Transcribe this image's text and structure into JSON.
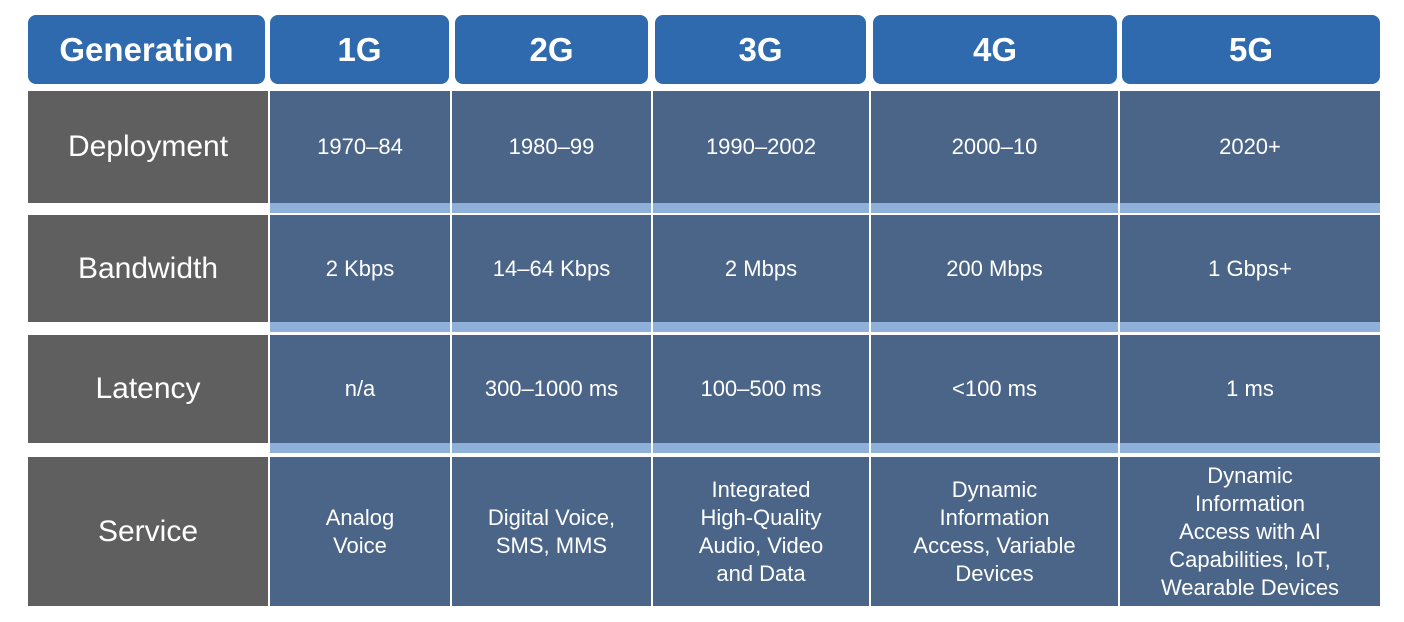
{
  "table": {
    "header": [
      "Generation",
      "1G",
      "2G",
      "3G",
      "4G",
      "5G"
    ],
    "rows": [
      {
        "label": "Deployment",
        "cells": [
          [
            "1970–84"
          ],
          [
            "1980–99"
          ],
          [
            "1990–2002"
          ],
          [
            "2000–10"
          ],
          [
            "2020+"
          ]
        ]
      },
      {
        "label": "Bandwidth",
        "cells": [
          [
            "2 Kbps"
          ],
          [
            "14–64 Kbps"
          ],
          [
            "2 Mbps"
          ],
          [
            "200 Mbps"
          ],
          [
            "1 Gbps+"
          ]
        ]
      },
      {
        "label": "Latency",
        "cells": [
          [
            "n/a"
          ],
          [
            "300–1000 ms"
          ],
          [
            "100–500 ms"
          ],
          [
            "<100 ms"
          ],
          [
            "1 ms"
          ]
        ]
      },
      {
        "label": "Service",
        "cells": [
          [
            "Analog",
            "Voice"
          ],
          [
            "Digital Voice,",
            "SMS, MMS"
          ],
          [
            "Integrated",
            "High-Quality",
            "Audio, Video",
            "and Data"
          ],
          [
            "Dynamic",
            "Information",
            "Access, Variable",
            "Devices"
          ],
          [
            "Dynamic",
            "Information",
            "Access with AI",
            "Capabilities, IoT,",
            "Wearable Devices"
          ]
        ]
      }
    ]
  }
}
